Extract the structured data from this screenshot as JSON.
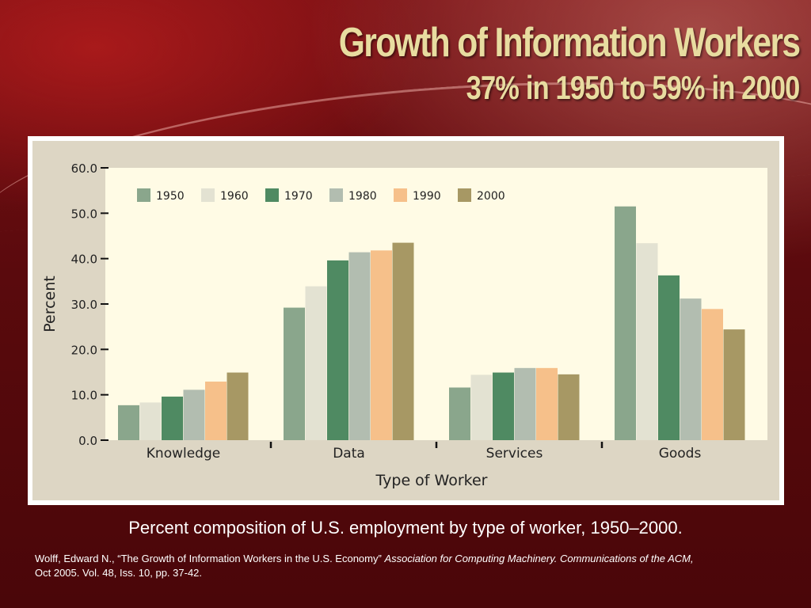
{
  "slide": {
    "title": "Growth of Information Workers",
    "subtitle": "37% in 1950 to 59% in 2000",
    "caption": "Percent composition of U.S. employment by type of worker, 1950–2000.",
    "citation_plain": "Wolff, Edward N., “The Growth of Information Workers in the U.S. Economy” ",
    "citation_italic": "Association for Computing Machinery. Communications of the ACM,",
    "citation_tail": "Oct 2005. Vol. 48, Iss. 10, pp. 37-42."
  },
  "chart_data": {
    "type": "bar",
    "title": "",
    "xlabel": "Type of Worker",
    "ylabel": "Percent",
    "ylim": [
      0,
      60
    ],
    "yticks": [
      "0.0",
      "10.0",
      "20.0",
      "30.0",
      "40.0",
      "50.0",
      "60.0"
    ],
    "categories": [
      "Knowledge",
      "Data",
      "Services",
      "Goods"
    ],
    "legend_position": "top-left",
    "grid": false,
    "series": [
      {
        "name": "1950",
        "color": "#8aa68c",
        "values": [
          7.7,
          29.2,
          11.6,
          51.5
        ]
      },
      {
        "name": "1960",
        "color": "#e3e2d2",
        "values": [
          8.3,
          33.9,
          14.4,
          43.4
        ]
      },
      {
        "name": "1970",
        "color": "#4f8a62",
        "values": [
          9.6,
          39.6,
          14.9,
          36.3
        ]
      },
      {
        "name": "1980",
        "color": "#b2bdb0",
        "values": [
          11.1,
          41.4,
          15.9,
          31.2
        ]
      },
      {
        "name": "1990",
        "color": "#f6c08a",
        "values": [
          12.9,
          41.8,
          15.9,
          28.9
        ]
      },
      {
        "name": "2000",
        "color": "#a79864",
        "values": [
          14.9,
          43.5,
          14.5,
          24.4
        ]
      }
    ]
  }
}
